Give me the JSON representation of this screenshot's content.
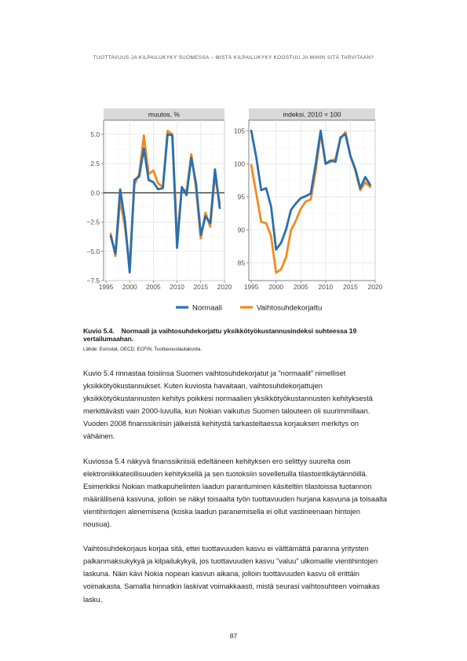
{
  "header": {
    "running_title": "TUOTTAVUUS JA KILPAILUKYKY SUOMESSA – MISTÄ KILPAILUKYKY KOOSTUU JA MIHIN SITÄ TARVITAAN?"
  },
  "chart_data": [
    {
      "type": "line",
      "title": "muutos, %",
      "xlabel": "",
      "ylabel": "",
      "xlim": [
        1994.5,
        2020
      ],
      "ylim": [
        -7.5,
        6.2
      ],
      "x_ticks": [
        "1995",
        "2000",
        "2005",
        "2010",
        "2015",
        "2020"
      ],
      "y_ticks": [
        "5.0",
        "2.5",
        "0.0",
        "−2.5",
        "−5.0",
        "−7.5"
      ],
      "reference_line": 0,
      "x": [
        1996,
        1997,
        1998,
        1999,
        2000,
        2001,
        2002,
        2003,
        2004,
        2005,
        2006,
        2007,
        2008,
        2009,
        2010,
        2011,
        2012,
        2013,
        2014,
        2015,
        2016,
        2017,
        2018,
        2019
      ],
      "series": [
        {
          "name": "Normaali",
          "color": "#2a6fae",
          "values": [
            -3.7,
            -5.2,
            0.3,
            -2.4,
            -6.8,
            1.1,
            1.4,
            3.8,
            1.1,
            0.9,
            0.3,
            0.4,
            5.0,
            4.9,
            -4.7,
            0.5,
            -0.2,
            3.0,
            0.8,
            -3.6,
            -2.0,
            -2.6,
            2.0,
            -1.3
          ]
        },
        {
          "name": "Vaihtosuhdekorjattu",
          "color": "#f28a1e",
          "values": [
            -3.5,
            -5.4,
            -0.6,
            -2.9,
            -6.3,
            0.7,
            1.6,
            4.9,
            1.6,
            1.9,
            0.8,
            0.5,
            5.3,
            5.0,
            -3.9,
            0.4,
            0.1,
            3.3,
            0.4,
            -3.9,
            -1.7,
            -2.9,
            1.5,
            -0.9
          ]
        }
      ]
    },
    {
      "type": "line",
      "title": "indeksi, 2010 = 100",
      "xlabel": "",
      "ylabel": "",
      "xlim": [
        1994.5,
        2020
      ],
      "ylim": [
        82.3,
        106.6
      ],
      "x_ticks": [
        "1995",
        "2000",
        "2005",
        "2010",
        "2015",
        "2020"
      ],
      "y_ticks": [
        "105",
        "100",
        "95",
        "90",
        "85"
      ],
      "x": [
        1995,
        1996,
        1997,
        1998,
        1999,
        2000,
        2001,
        2002,
        2003,
        2004,
        2005,
        2006,
        2007,
        2008,
        2009,
        2010,
        2011,
        2012,
        2013,
        2014,
        2015,
        2016,
        2017,
        2018,
        2019
      ],
      "series": [
        {
          "name": "Normaali",
          "color": "#2a6fae",
          "values": [
            105.0,
            101.0,
            96.0,
            96.3,
            93.5,
            87.0,
            88.0,
            90.0,
            93.0,
            94.0,
            94.8,
            95.1,
            95.5,
            100.0,
            105.0,
            100.0,
            100.5,
            100.3,
            104.0,
            104.5,
            101.2,
            99.2,
            96.3,
            98.0,
            96.8
          ]
        },
        {
          "name": "Vaihtosuhdekorjattu",
          "color": "#f28a1e",
          "values": [
            99.8,
            95.5,
            91.2,
            91.0,
            89.0,
            83.5,
            84.0,
            85.8,
            89.9,
            91.4,
            93.2,
            94.3,
            94.6,
            99.0,
            104.6,
            100.0,
            100.3,
            100.8,
            103.8,
            104.8,
            101.2,
            99.0,
            96.0,
            97.2,
            96.5
          ]
        }
      ]
    }
  ],
  "legend": {
    "items": [
      {
        "label": "Normaali",
        "color": "#2a6fae"
      },
      {
        "label": "Vaihtosuhdekorjattu",
        "color": "#f28a1e"
      }
    ]
  },
  "caption": {
    "number": "Kuvio 5.4.",
    "title": "Normaali ja vaihtosuhdekorjattu yksikkötyökustannusindeksi suhteessa 19 vertailumaahan.",
    "source": "Lähde: Eurostat, OECD, ECFIN, Tuottavuuslautakunta."
  },
  "body": {
    "paragraphs": [
      "Kuvio 5.4 rinnastaa toisiinsa Suomen vaihtosuhdekorjatut ja ”normaalit” nimelliset yksikkötyökustannukset. Kuten kuviosta havaitaan, vaihtosuhdekorjattujen yksikkötyökustannusten kehitys poikkesi normaalien yksikkötyökustannusten kehityksestä merkittävästi vain 2000-luvulla, kun Nokian vaikutus Suomen talouteen oli suurimmillaan. Vuoden 2008 finanssikriisin jälkeistä kehitystä tarkasteltaessa korjauksen merkitys on vähäinen.",
      "Kuviossa 5.4 näkyvä finanssikriisiä edeltäneen kehityksen ero selittyy suurelta osin elektroniikkateollisuuden kehityksellä ja sen tuotoksiin sovelletuilla tilastointikäytännöillä. Esimerkiksi Nokian matkapuhelinten laadun parantuminen käsiteltiin tilastoissa tuotannon määrällisenä kasvuna, jolloin se näkyi toisaalta työn tuottavuuden hurjana kasvuna ja toisaalta vientihintojen alenemisena (koska laadun paranemisella ei ollut vastineenaan hintojen nousua).",
      "Vaihtosuhdekorjaus korjaa sitä, ettei tuottavuuden kasvu ei välttämättä paranna yritysten palkanmaksukykyä ja kilpailukykyä, jos tuottavuuden kasvu ”valuu” ulkomaille vientihintojen laskuna. Näin kävi Nokia nopean kasvun aikana, jolloin tuottavuuden kasvu oli erittäin voimakasta. Samalla hinnatkin laskivat voimakkaasti, mistä seurasi vaihtosuhteen voimakas lasku."
    ]
  },
  "footer": {
    "page_number": "87"
  }
}
